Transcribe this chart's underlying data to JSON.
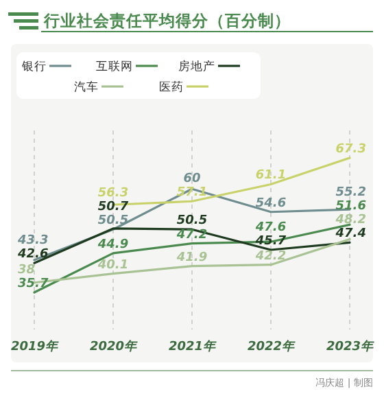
{
  "chart_data": {
    "type": "line",
    "title": "行业社会责任平均得分（百分制）",
    "categories": [
      "2019年",
      "2020年",
      "2021年",
      "2022年",
      "2023年"
    ],
    "series": [
      {
        "name": "银行",
        "color": "#6f8d8f",
        "values": [
          43.3,
          50.5,
          60,
          54.6,
          55.2
        ]
      },
      {
        "name": "互联网",
        "color": "#4b8a4f",
        "values": [
          35.7,
          44.9,
          47.2,
          47.6,
          51.6
        ]
      },
      {
        "name": "房地产",
        "color": "#1e3b20",
        "values": [
          42.6,
          50.7,
          50.5,
          45.7,
          47.4
        ]
      },
      {
        "name": "汽车",
        "color": "#a9c294",
        "values": [
          38,
          40.1,
          41.9,
          42.2,
          48.2
        ]
      },
      {
        "name": "医药",
        "color": "#c9d26a",
        "values": [
          null,
          56.3,
          57.1,
          61.1,
          67.3
        ]
      }
    ],
    "data_labels": true,
    "grid": "x",
    "legend": "top left",
    "marker": "none",
    "annotations": [
      "冯庆超 | 制图"
    ]
  }
}
